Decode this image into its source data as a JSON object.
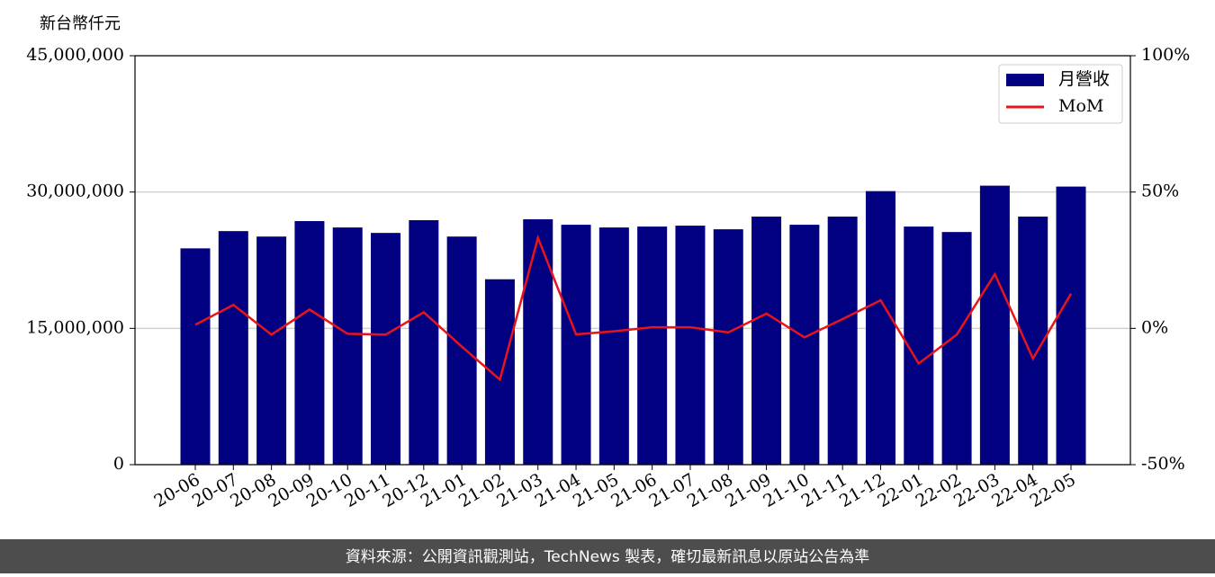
{
  "chart_data": {
    "type": "bar_line",
    "y_label": "新台幣仟元",
    "source": "資料來源：公開資訊觀測站，TechNews 製表，確切最新訊息以原站公告為準",
    "categories": [
      "20-06",
      "20-07",
      "20-08",
      "20-09",
      "20-10",
      "20-11",
      "20-12",
      "21-01",
      "21-02",
      "21-03",
      "21-04",
      "21-05",
      "21-06",
      "21-07",
      "21-08",
      "21-09",
      "21-10",
      "21-11",
      "21-12",
      "22-01",
      "22-02",
      "22-03",
      "22-04",
      "22-05"
    ],
    "series": [
      {
        "name": "月營收",
        "type": "bar",
        "color": "#000080",
        "values": [
          23800000,
          25700000,
          25100000,
          26800000,
          26100000,
          25500000,
          26900000,
          25100000,
          20400000,
          27000000,
          26400000,
          26100000,
          26200000,
          26300000,
          25900000,
          27300000,
          26400000,
          27300000,
          30100000,
          26200000,
          25600000,
          30700000,
          27300000,
          30600000
        ]
      },
      {
        "name": "MoM",
        "type": "line",
        "axis": "y2",
        "color": "#e8141c",
        "values": [
          1.3,
          8.6,
          -2.3,
          6.9,
          -2.0,
          -2.3,
          5.9,
          -6.7,
          -18.8,
          33.2,
          -2.2,
          -1.1,
          0.4,
          0.4,
          -1.5,
          5.4,
          -3.3,
          3.4,
          10.3,
          -12.9,
          -2.3,
          19.9,
          -11.1,
          12.7
        ]
      }
    ],
    "ylim": [
      0,
      45000000
    ],
    "yticks": [
      0,
      {
        "value": 15000000,
        "label": "15,000,000"
      },
      {
        "value": 30000000,
        "label": "30,000,000"
      },
      {
        "value": 45000000,
        "label": "45,000,000"
      }
    ],
    "y2lim": [
      -50,
      100
    ],
    "y2ticks": [
      {
        "value": -50,
        "label": "-50%"
      },
      {
        "value": 0,
        "label": "0%"
      },
      {
        "value": 50,
        "label": "50%"
      },
      {
        "value": 100,
        "label": "100%"
      }
    ],
    "grid": true,
    "legend": "upper right"
  }
}
